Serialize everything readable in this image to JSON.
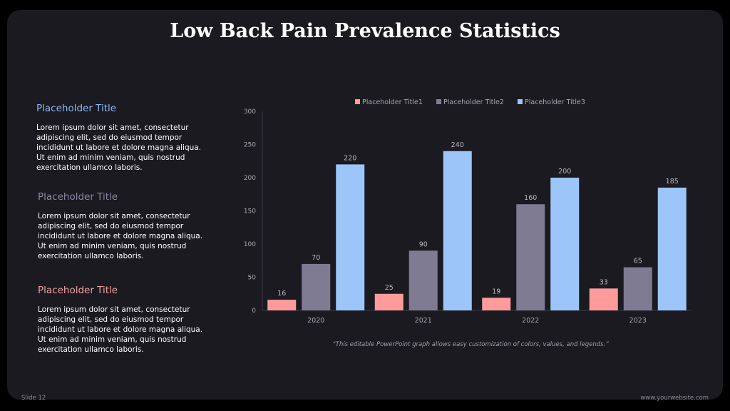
{
  "title": "Low Back Pain Prevalence Statistics",
  "blocks": [
    {
      "heading": "Placeholder Title",
      "color": "#8ab8f0",
      "text": "Lorem ipsum dolor sit amet, consectetur adipiscing elit, sed do eiusmod tempor incididunt ut labore et dolore magna aliqua. Ut enim ad minim veniam, quis nostrud exercitation ullamco laboris."
    },
    {
      "heading": "Placeholder Title",
      "color": "#8a87a0",
      "text": "Lorem ipsum dolor sit amet, consectetur adipiscing elit, sed do eiusmod tempor incididunt ut labore et dolore magna aliqua. Ut enim ad minim veniam, quis nostrud exercitation ullamco laboris."
    },
    {
      "heading": "Placeholder Title",
      "color": "#f0a0a0",
      "text": "Lorem ipsum dolor sit amet, consectetur adipiscing elit, sed do eiusmod tempor incididunt ut labore et dolore magna aliqua. Ut enim ad minim veniam, quis nostrud exercitation ullamco laboris."
    }
  ],
  "caption": "“This editable PowerPoint graph allows easy customization of colors, values, and legends.”",
  "footer": {
    "slide": "Slide 12",
    "website": "www.yourwebsite.com"
  },
  "chart_data": {
    "type": "bar",
    "categories": [
      "2020",
      "2021",
      "2022",
      "2023"
    ],
    "series": [
      {
        "name": "Placeholder Title1",
        "color": "#ff9b9b",
        "values": [
          16,
          25,
          19,
          33
        ]
      },
      {
        "name": "Placeholder Title2",
        "color": "#7e7b93",
        "values": [
          70,
          90,
          160,
          65
        ]
      },
      {
        "name": "Placeholder Title3",
        "color": "#9cc6fa",
        "values": [
          220,
          240,
          200,
          185
        ]
      }
    ],
    "ylim": [
      0,
      300
    ],
    "yticks": [
      0,
      50,
      100,
      150,
      200,
      250,
      300
    ],
    "legend": "top",
    "grid": false,
    "data_labels": true
  }
}
